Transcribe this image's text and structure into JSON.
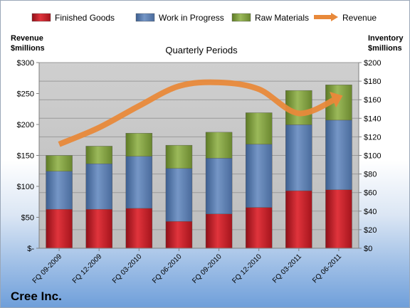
{
  "company": "Cree Inc.",
  "chart_data": {
    "type": "bar",
    "stacked": true,
    "title": "Quarterly Periods",
    "ylabel_left": [
      "Revenue",
      "$millions"
    ],
    "ylabel_right": [
      "Inventory",
      "$millions"
    ],
    "categories": [
      "FQ 09-2009",
      "FQ 12-2009",
      "FQ 03-2010",
      "FQ 06-2010",
      "FQ 09-2010",
      "FQ 12-2010",
      "FQ 03-2011",
      "FQ 06-2011"
    ],
    "y_left": {
      "min": 0,
      "max": 300,
      "step": 50,
      "tick_labels": [
        "$-",
        "$50",
        "$100",
        "$150",
        "$200",
        "$250",
        "$300"
      ]
    },
    "y_right": {
      "min": 0,
      "max": 200,
      "step": 20,
      "tick_labels": [
        "$0",
        "$20",
        "$40",
        "$60",
        "$80",
        "$100",
        "$120",
        "$140",
        "$160",
        "$180",
        "$200"
      ]
    },
    "series": [
      {
        "name": "Finished Goods",
        "axis": "right",
        "color": "#c9202a",
        "values": [
          42,
          42,
          43,
          29,
          37,
          44,
          62,
          63
        ]
      },
      {
        "name": "Work in Progress",
        "axis": "right",
        "color": "#5b7fb2",
        "values": [
          41,
          49,
          56,
          57,
          60,
          68,
          71,
          75
        ]
      },
      {
        "name": "Raw Materials",
        "axis": "right",
        "color": "#7e9c3c",
        "values": [
          17,
          19,
          25,
          25,
          28,
          34,
          37,
          38
        ]
      },
      {
        "name": "Revenue",
        "axis": "left",
        "type": "line",
        "color": "#e8893a",
        "values": [
          168,
          195,
          230,
          262,
          268,
          257,
          218,
          244
        ]
      }
    ],
    "legend_position": "top",
    "grid": true
  }
}
